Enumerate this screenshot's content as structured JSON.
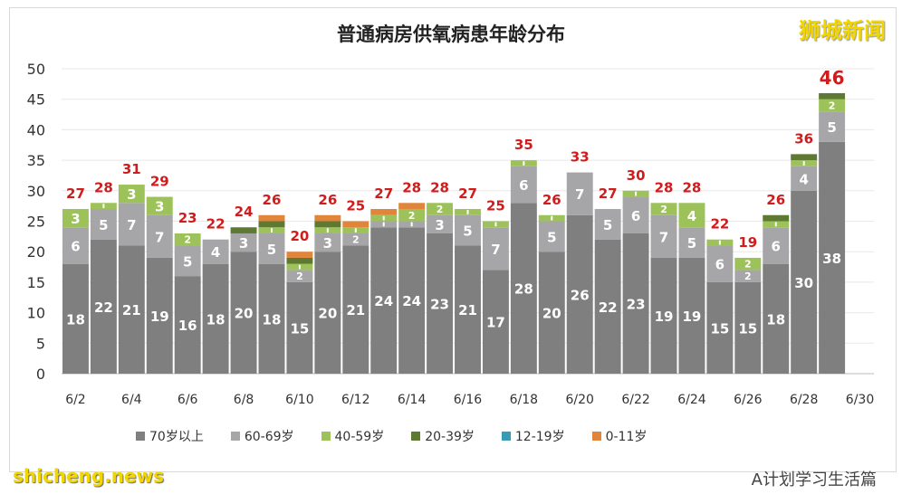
{
  "chart_data": {
    "type": "bar",
    "stacked": true,
    "title": "普通病房供氧病患年龄分布",
    "categories": [
      "6/2",
      "6/3",
      "6/4",
      "6/5",
      "6/6",
      "6/7",
      "6/8",
      "6/9",
      "6/10",
      "6/11",
      "6/12",
      "6/13",
      "6/14",
      "6/15",
      "6/16",
      "6/17",
      "6/18",
      "6/19",
      "6/20",
      "6/21",
      "6/22",
      "6/23",
      "6/24",
      "6/25",
      "6/26",
      "6/27",
      "6/28",
      "6/29"
    ],
    "x_tick_labels": [
      "6/2",
      "6/4",
      "6/6",
      "6/8",
      "6/10",
      "6/12",
      "6/14",
      "6/16",
      "6/18",
      "6/20",
      "6/22",
      "6/24",
      "6/26",
      "6/28",
      "6/30"
    ],
    "ylim": [
      0,
      50
    ],
    "yticks": [
      0,
      5,
      10,
      15,
      20,
      25,
      30,
      35,
      40,
      45,
      50
    ],
    "grid": true,
    "legend": "bottom",
    "series": [
      {
        "name": "70岁以上",
        "color": "#7f7f7f",
        "values": [
          18,
          22,
          21,
          19,
          16,
          18,
          20,
          18,
          15,
          20,
          21,
          24,
          24,
          23,
          21,
          17,
          28,
          20,
          26,
          22,
          23,
          19,
          19,
          15,
          15,
          18,
          30,
          38
        ]
      },
      {
        "name": "60-69岁",
        "color": "#a6a6a8",
        "values": [
          6,
          5,
          7,
          7,
          5,
          4,
          3,
          5,
          2,
          3,
          2,
          1,
          1,
          3,
          5,
          7,
          6,
          5,
          7,
          5,
          6,
          7,
          5,
          6,
          2,
          6,
          4,
          5
        ]
      },
      {
        "name": "40-59岁",
        "color": "#9dc25a",
        "values": [
          3,
          1,
          3,
          3,
          2,
          0,
          0,
          1,
          1,
          1,
          1,
          1,
          2,
          2,
          1,
          1,
          1,
          1,
          0,
          0,
          1,
          2,
          4,
          1,
          2,
          1,
          1,
          2
        ]
      },
      {
        "name": "20-39岁",
        "color": "#5e7a32",
        "values": [
          0,
          0,
          0,
          0,
          0,
          0,
          1,
          1,
          1,
          1,
          0,
          0,
          0,
          0,
          0,
          0,
          0,
          0,
          0,
          0,
          0,
          0,
          0,
          0,
          0,
          1,
          1,
          1
        ]
      },
      {
        "name": "12-19岁",
        "color": "#3a9bb5",
        "values": [
          0,
          0,
          0,
          0,
          0,
          0,
          0,
          0,
          0,
          0,
          0,
          0,
          0,
          0,
          0,
          0,
          0,
          0,
          0,
          0,
          0,
          0,
          0,
          0,
          0,
          0,
          0,
          0
        ]
      },
      {
        "name": "0-11岁",
        "color": "#e0853a",
        "values": [
          0,
          0,
          0,
          0,
          0,
          0,
          0,
          1,
          1,
          1,
          1,
          1,
          1,
          0,
          0,
          0,
          0,
          0,
          0,
          0,
          0,
          0,
          0,
          0,
          0,
          0,
          0,
          0
        ]
      }
    ],
    "totals": [
      27,
      28,
      31,
      29,
      23,
      22,
      24,
      26,
      20,
      26,
      25,
      27,
      28,
      28,
      27,
      25,
      35,
      26,
      33,
      27,
      30,
      28,
      28,
      22,
      19,
      26,
      36,
      46
    ],
    "total_color": "#d01c1c"
  },
  "logo": "狮城新闻",
  "watermark": "shicheng.news",
  "source": "A计划学习生活篇"
}
